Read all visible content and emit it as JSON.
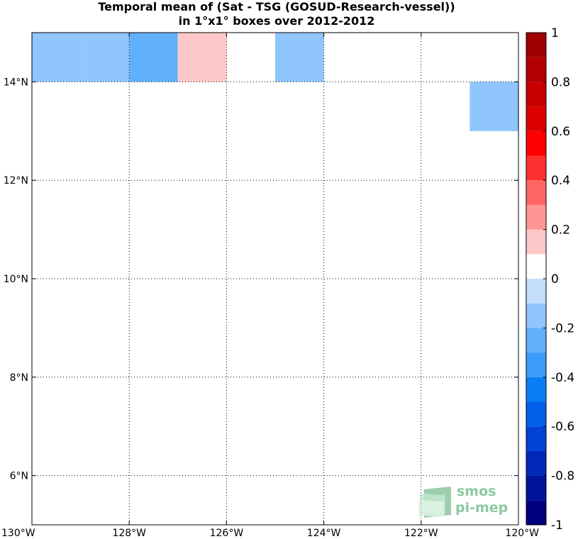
{
  "chart_data": {
    "type": "heatmap",
    "title_lines": [
      "Temporal mean of (Sat - TSG (GOSUD-Research-vessel))",
      "in 1°x1° boxes over 2012-2012"
    ],
    "xlim": [
      -130,
      -120
    ],
    "ylim": [
      5,
      15
    ],
    "x_ticks": [
      {
        "value": -130,
        "label": "130°W"
      },
      {
        "value": -128,
        "label": "128°W"
      },
      {
        "value": -126,
        "label": "126°W"
      },
      {
        "value": -124,
        "label": "124°W"
      },
      {
        "value": -122,
        "label": "122°W"
      },
      {
        "value": -120,
        "label": "120°W"
      }
    ],
    "y_ticks": [
      {
        "value": 6,
        "label": "6°N"
      },
      {
        "value": 8,
        "label": "8°N"
      },
      {
        "value": 10,
        "label": "10°N"
      },
      {
        "value": 12,
        "label": "12°N"
      },
      {
        "value": 14,
        "label": "14°N"
      }
    ],
    "grid": true,
    "cells": [
      {
        "lon": [
          -130,
          -129
        ],
        "lat": [
          14,
          15
        ],
        "value": -0.15
      },
      {
        "lon": [
          -129,
          -128
        ],
        "lat": [
          14,
          15
        ],
        "value": -0.15
      },
      {
        "lon": [
          -128,
          -127
        ],
        "lat": [
          14,
          15
        ],
        "value": -0.25
      },
      {
        "lon": [
          -127,
          -126
        ],
        "lat": [
          14,
          15
        ],
        "value": 0.15
      },
      {
        "lon": [
          -125,
          -124
        ],
        "lat": [
          14,
          15
        ],
        "value": -0.15
      },
      {
        "lon": [
          -121,
          -120
        ],
        "lat": [
          13,
          14
        ],
        "value": -0.15
      }
    ],
    "colorbar": {
      "min": -1,
      "max": 1,
      "ticks": [
        {
          "value": 1,
          "label": "1"
        },
        {
          "value": 0.8,
          "label": "0.8"
        },
        {
          "value": 0.6,
          "label": "0.6"
        },
        {
          "value": 0.4,
          "label": "0.4"
        },
        {
          "value": 0.2,
          "label": "0.2"
        },
        {
          "value": 0,
          "label": "0"
        },
        {
          "value": -0.2,
          "label": "-0.2"
        },
        {
          "value": -0.4,
          "label": "-0.4"
        },
        {
          "value": -0.6,
          "label": "-0.6"
        },
        {
          "value": -0.8,
          "label": "-0.8"
        },
        {
          "value": -1,
          "label": "-1"
        }
      ],
      "colors": [
        "#000080",
        "#00139c",
        "#0028b8",
        "#0042d4",
        "#0060e8",
        "#0a7ff4",
        "#3a9bf8",
        "#62b0fb",
        "#90c5fd",
        "#c4defc",
        "#ffffff",
        "#ffffff",
        "#ffc8c8",
        "#ff9696",
        "#ff6464",
        "#ff3030",
        "#ff0000",
        "#dc0000",
        "#c80000",
        "#b40000",
        "#a00000",
        "#800000"
      ],
      "boundaries": [
        -1,
        -0.9,
        -0.8,
        -0.7,
        -0.6,
        -0.5,
        -0.4,
        -0.3,
        -0.2,
        -0.1,
        0,
        0,
        0.1,
        0.2,
        0.3,
        0.4,
        0.5,
        0.6,
        0.7,
        0.8,
        0.9,
        1
      ]
    },
    "logo": {
      "line1": "smos",
      "line2": "pi-mep"
    }
  }
}
